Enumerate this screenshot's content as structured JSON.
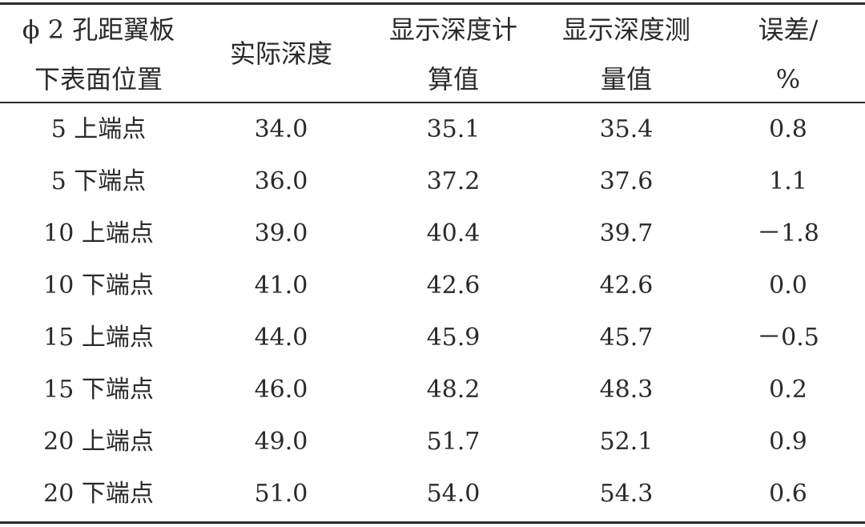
{
  "headers": {
    "col1": [
      "ϕ 2 孔距翼板",
      "下表面位置"
    ],
    "col2": "实际深度",
    "col3": [
      "显示深度计",
      "算值"
    ],
    "col4": [
      "显示深度测",
      "量值"
    ],
    "col5": [
      "误差/",
      "%"
    ]
  },
  "rows": [
    {
      "position": "5 上端点",
      "actual": "34.0",
      "calc": "35.1",
      "measured": "35.4",
      "error": "0.8"
    },
    {
      "position": "5 下端点",
      "actual": "36.0",
      "calc": "37.2",
      "measured": "37.6",
      "error": "1.1"
    },
    {
      "position": "10 上端点",
      "actual": "39.0",
      "calc": "40.4",
      "measured": "39.7",
      "error": "－1.8"
    },
    {
      "position": "10 下端点",
      "actual": "41.0",
      "calc": "42.6",
      "measured": "42.6",
      "error": "0.0"
    },
    {
      "position": "15 上端点",
      "actual": "44.0",
      "calc": "45.9",
      "measured": "45.7",
      "error": "－0.5"
    },
    {
      "position": "15 下端点",
      "actual": "46.0",
      "calc": "48.2",
      "measured": "48.3",
      "error": "0.2"
    },
    {
      "position": "20 上端点",
      "actual": "49.0",
      "calc": "51.7",
      "measured": "52.1",
      "error": "0.9"
    },
    {
      "position": "20 下端点",
      "actual": "51.0",
      "calc": "54.0",
      "measured": "54.3",
      "error": "0.6"
    }
  ]
}
